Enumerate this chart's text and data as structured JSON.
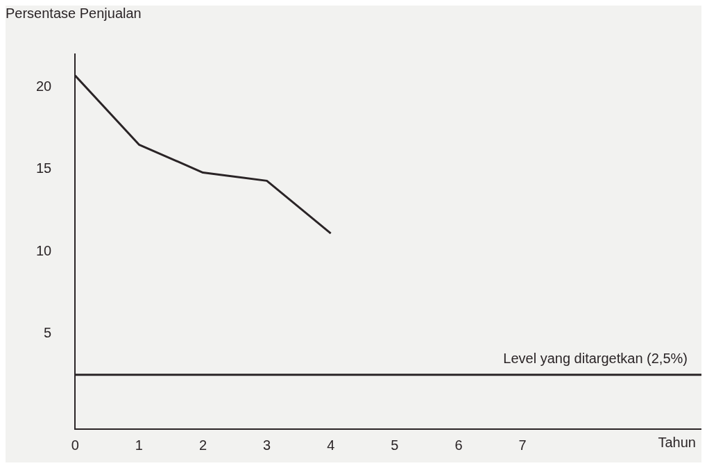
{
  "chart_data": {
    "type": "line",
    "ylabel": "Persentase Penjualan",
    "xlabel": "Tahun",
    "x": [
      0,
      1,
      2,
      3,
      4
    ],
    "series": [
      {
        "color": "#2a2426",
        "values": [
          20.7,
          16.5,
          14.8,
          14.3,
          11.1
        ]
      }
    ],
    "xlim": [
      0,
      9.8
    ],
    "xticks": [
      0,
      1,
      2,
      3,
      4,
      5,
      6,
      7
    ],
    "ylim": [
      -0.8,
      22
    ],
    "yticks": [
      5,
      10,
      15,
      20
    ],
    "ref_lines": [
      {
        "axis": "y",
        "value": 2.5,
        "label": "Level yang ditargetkan (2,5%)",
        "color": "#2a2426"
      }
    ],
    "grid": false,
    "legend": false,
    "marker": "none",
    "line_style": "solid"
  }
}
